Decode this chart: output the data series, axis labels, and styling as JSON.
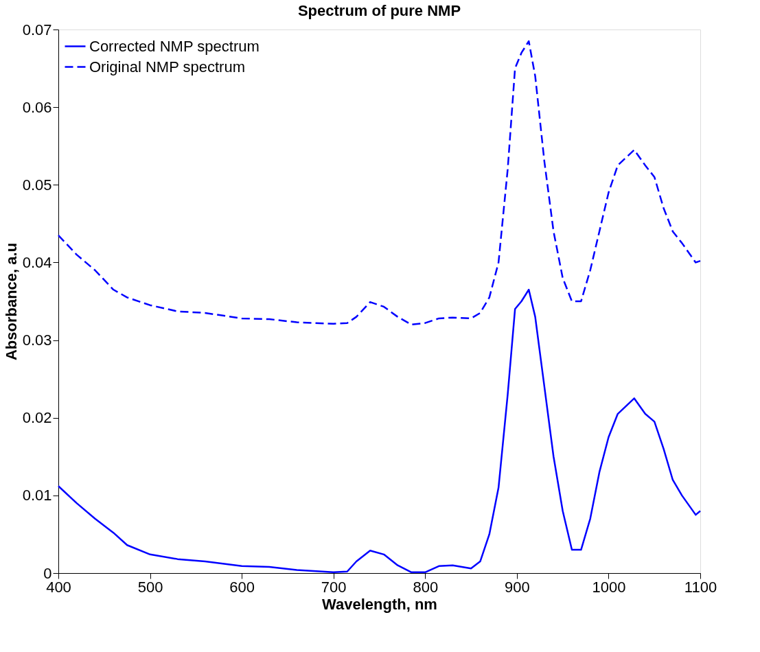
{
  "chart_data": {
    "type": "line",
    "title": "Spectrum of pure NMP",
    "xlabel": "Wavelength, nm",
    "ylabel": "Absorbance, a.u",
    "x": [
      400,
      420,
      440,
      460,
      475,
      500,
      530,
      560,
      600,
      630,
      660,
      700,
      715,
      725,
      740,
      755,
      770,
      785,
      800,
      815,
      830,
      850,
      860,
      870,
      880,
      890,
      898,
      905,
      913,
      920,
      930,
      940,
      950,
      960,
      970,
      980,
      990,
      1000,
      1010,
      1028,
      1040,
      1050,
      1060,
      1070,
      1080,
      1095,
      1100
    ],
    "series": [
      {
        "name": "Corrected NMP spectrum",
        "color": "#0000ff",
        "line_style": "solid",
        "values": [
          0.0112,
          0.009,
          0.007,
          0.0052,
          0.0036,
          0.0024,
          0.0018,
          0.0015,
          0.0009,
          0.0008,
          0.0004,
          0.0001,
          0.0002,
          0.0015,
          0.0029,
          0.0024,
          0.001,
          0.0001,
          0.0001,
          0.0009,
          0.001,
          0.0006,
          0.0015,
          0.005,
          0.011,
          0.023,
          0.034,
          0.035,
          0.0365,
          0.033,
          0.024,
          0.015,
          0.008,
          0.003,
          0.003,
          0.007,
          0.013,
          0.0175,
          0.0205,
          0.0225,
          0.0205,
          0.0195,
          0.016,
          0.012,
          0.01,
          0.0075,
          0.008
        ]
      },
      {
        "name": "Original NMP spectrum",
        "color": "#0000ff",
        "line_style": "dashed",
        "values": [
          0.0435,
          0.041,
          0.039,
          0.0365,
          0.0355,
          0.0345,
          0.0337,
          0.0335,
          0.0328,
          0.0327,
          0.0323,
          0.0321,
          0.0322,
          0.033,
          0.0349,
          0.0343,
          0.033,
          0.032,
          0.0322,
          0.0328,
          0.0329,
          0.0328,
          0.0335,
          0.0355,
          0.04,
          0.052,
          0.065,
          0.067,
          0.0685,
          0.064,
          0.053,
          0.044,
          0.038,
          0.035,
          0.035,
          0.039,
          0.044,
          0.049,
          0.0525,
          0.0545,
          0.0525,
          0.051,
          0.047,
          0.044,
          0.0425,
          0.04,
          0.0402
        ]
      }
    ],
    "xlim": [
      400,
      1100
    ],
    "xticks": [
      400,
      500,
      600,
      700,
      800,
      900,
      1000,
      1100
    ],
    "ylim": [
      0,
      0.07
    ],
    "yticks": [
      0,
      0.01,
      0.02,
      0.03,
      0.04,
      0.05,
      0.06,
      0.07
    ],
    "grid": false,
    "legend": "top left",
    "marker": "none"
  }
}
